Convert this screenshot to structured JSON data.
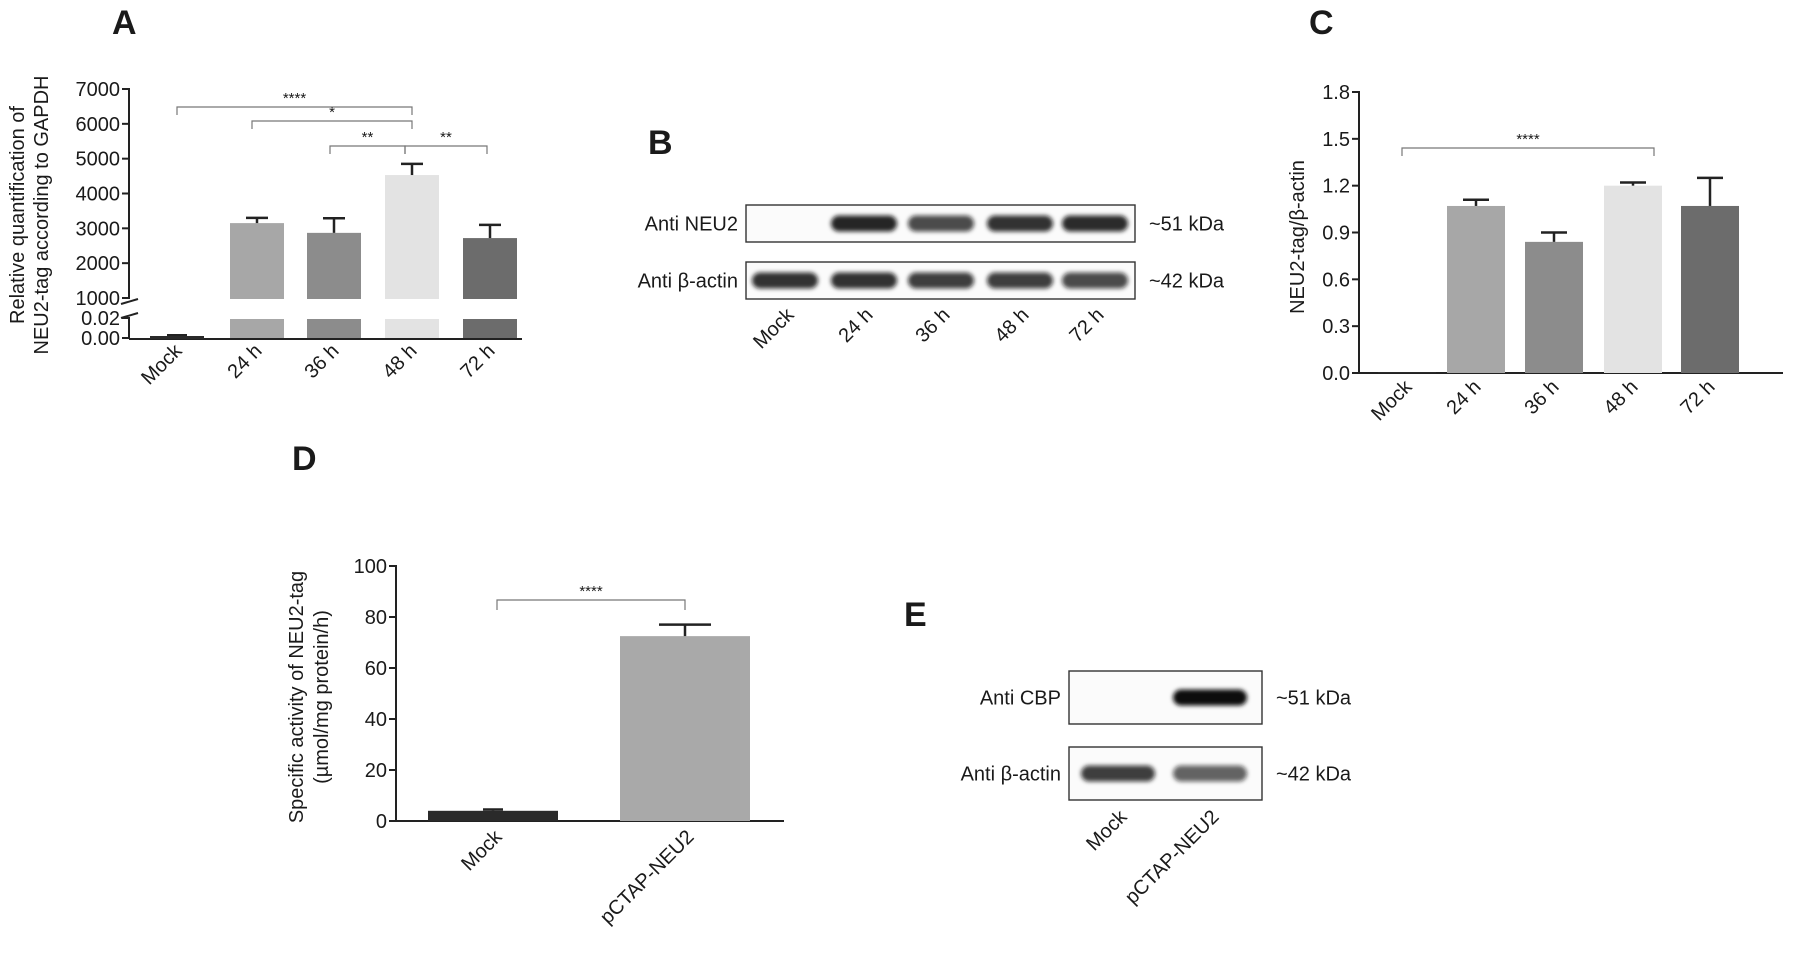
{
  "panels": {
    "A": "A",
    "B": "B",
    "C": "C",
    "D": "D",
    "E": "E"
  },
  "colors": {
    "Mock": "#2a2a2a",
    "24 h": "#a7a7a7",
    "36 h": "#8c8c8c",
    "48 h": "#e3e3e3",
    "72 h": "#6c6c6c",
    "pCTAP-NEU2": "#a9a9a9"
  },
  "blot_B": {
    "rows": [
      {
        "label": "Anti NEU2",
        "size": "~51 kDa",
        "intensities": [
          0.0,
          0.9,
          0.75,
          0.85,
          0.88
        ]
      },
      {
        "label": "Anti β-actin",
        "size": "~42 kDa",
        "intensities": [
          0.85,
          0.85,
          0.8,
          0.8,
          0.75
        ]
      }
    ],
    "lanes": [
      "Mock",
      "24 h",
      "36 h",
      "48 h",
      "72 h"
    ]
  },
  "blot_E": {
    "rows": [
      {
        "label": "Anti CBP",
        "size": "~51 kDa",
        "intensities": [
          0.0,
          1.0
        ]
      },
      {
        "label": "Anti β-actin",
        "size": "~42 kDa",
        "intensities": [
          0.8,
          0.65
        ]
      }
    ],
    "lanes": [
      "Mock",
      "pCTAP-NEU2"
    ]
  },
  "chart_data": [
    {
      "panel": "A",
      "type": "bar",
      "ylabel": "Relative quantification of NEU2-tag according to GAPDH",
      "axis_break": {
        "upper": [
          1000,
          7000
        ],
        "lower": [
          0.0,
          0.02
        ]
      },
      "yticks_upper": [
        "1000",
        "2000",
        "3000",
        "4000",
        "5000",
        "6000",
        "7000"
      ],
      "yticks_lower": [
        "0.00",
        "0.02"
      ],
      "categories": [
        "Mock",
        "24 h",
        "36 h",
        "48 h",
        "72 h"
      ],
      "values": [
        0.001,
        3150,
        2870,
        4530,
        2720
      ],
      "errors": [
        0.001,
        150,
        420,
        320,
        380
      ],
      "significance": [
        {
          "from": "Mock",
          "to": "48 h",
          "label": "****"
        },
        {
          "from": "24 h",
          "to": "48 h",
          "label": "*"
        },
        {
          "from": "36 h",
          "to": "48 h",
          "label": "**"
        },
        {
          "from": "48 h",
          "to": "72 h",
          "label": "**"
        }
      ]
    },
    {
      "panel": "C",
      "type": "bar",
      "ylabel": "NEU2-tag/β-actin",
      "ylim": [
        0,
        1.8
      ],
      "yticks": [
        "0.0",
        "0.3",
        "0.6",
        "0.9",
        "1.2",
        "1.5",
        "1.8"
      ],
      "categories": [
        "Mock",
        "24 h",
        "36 h",
        "48 h",
        "72 h"
      ],
      "values": [
        0.0,
        1.07,
        0.84,
        1.2,
        1.07
      ],
      "errors": [
        0.0,
        0.04,
        0.06,
        0.02,
        0.18
      ],
      "significance": [
        {
          "from": "Mock",
          "to": "48 h",
          "label": "****"
        }
      ]
    },
    {
      "panel": "D",
      "type": "bar",
      "ylabel": "Specific activity of NEU2-tag",
      "ylabel2": "(µmol/mg protein/h)",
      "ylim": [
        0,
        100
      ],
      "yticks": [
        "0",
        "20",
        "40",
        "60",
        "80",
        "100"
      ],
      "categories": [
        "Mock",
        "pCTAP-NEU2"
      ],
      "values": [
        4,
        72.5
      ],
      "errors": [
        0.5,
        4.5
      ],
      "significance": [
        {
          "from": "Mock",
          "to": "pCTAP-NEU2",
          "label": "****"
        }
      ]
    }
  ]
}
